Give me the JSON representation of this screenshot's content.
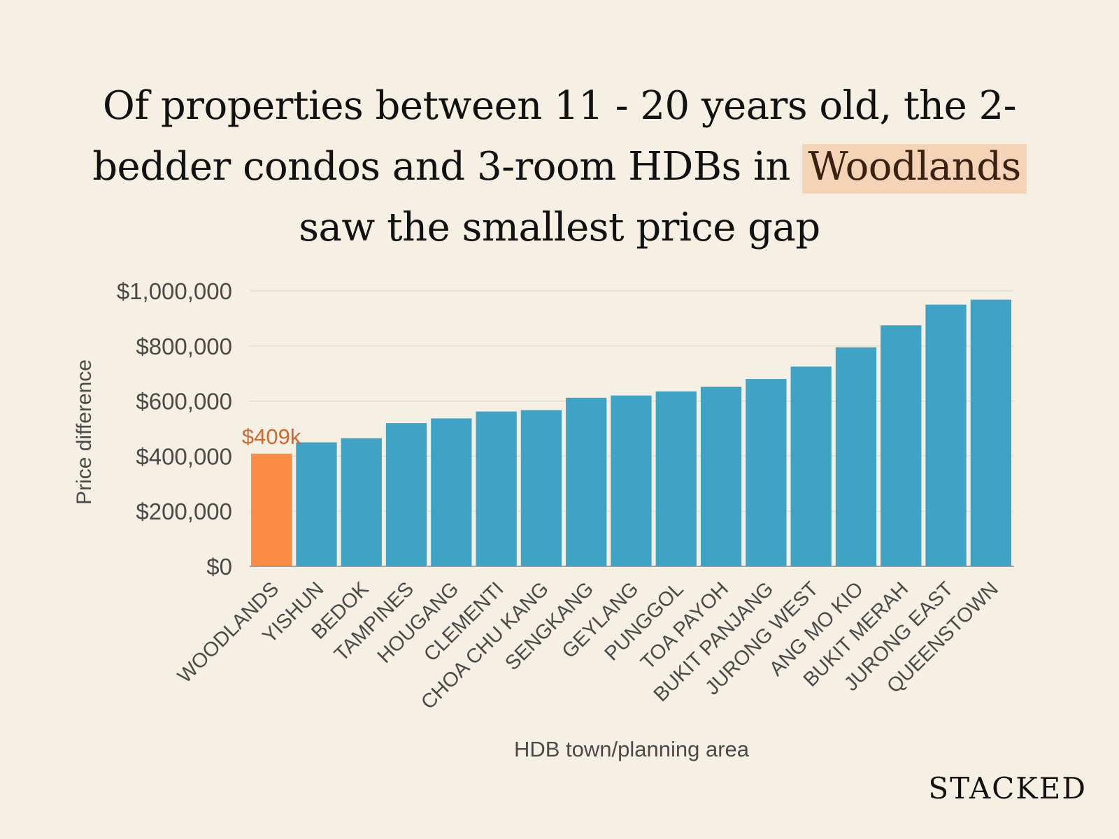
{
  "title": {
    "line1": "Of properties between 11 - 20 years old, the 2-",
    "line2_pre": "bedder condos and 3-room HDBs in ",
    "line2_highlight": "Woodlands",
    "line3": "saw the smallest price gap"
  },
  "brand": "STACKED",
  "colors": {
    "background": "#f6f0e4",
    "bar_default": "#40a2c4",
    "bar_highlight": "#fb8c46",
    "highlight_label": "#c96a32",
    "title_highlight_bg": "#f4d3b6",
    "grid": "#e2dccf",
    "axis_text": "#4a4a4a"
  },
  "chart_data": {
    "type": "bar",
    "xlabel": "HDB town/planning area",
    "ylabel": "Price difference",
    "ylim": [
      0,
      1000000
    ],
    "yticks": [
      0,
      200000,
      400000,
      600000,
      800000,
      1000000
    ],
    "ytick_labels": [
      "$0",
      "$200,000",
      "$400,000",
      "$600,000",
      "$800,000",
      "$1,000,000"
    ],
    "grid": true,
    "categories": [
      "WOODLANDS",
      "YISHUN",
      "BEDOK",
      "TAMPINES",
      "HOUGANG",
      "CLEMENTI",
      "CHOA CHU KANG",
      "SENGKANG",
      "GEYLANG",
      "PUNGGOL",
      "TOA PAYOH",
      "BUKIT PANJANG",
      "JURONG WEST",
      "ANG MO KIO",
      "BUKIT MERAH",
      "JURONG EAST",
      "QUEENSTOWN"
    ],
    "values": [
      409000,
      450000,
      465000,
      520000,
      537000,
      562000,
      567000,
      612000,
      620000,
      635000,
      652000,
      680000,
      725000,
      795000,
      875000,
      950000,
      968000
    ],
    "highlight_index": 0,
    "annotation": "$409k"
  }
}
